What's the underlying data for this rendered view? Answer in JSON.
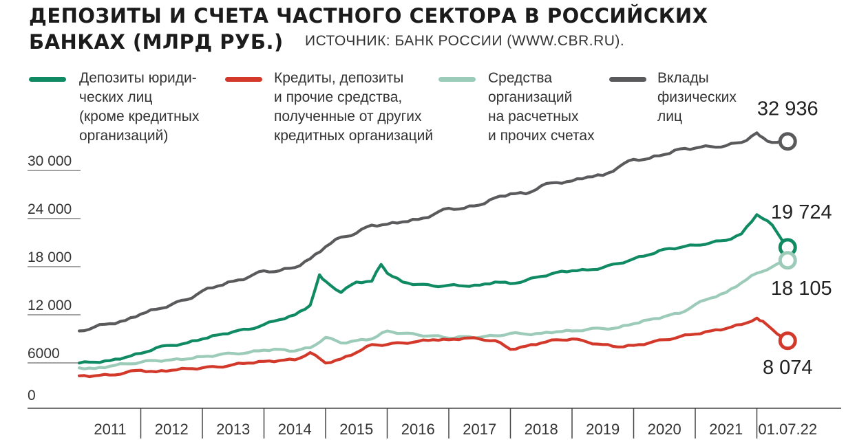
{
  "header": {
    "title_line1": "ДЕПОЗИТЫ И СЧЕТА ЧАСТНОГО СЕКТОРА В РОССИЙСКИХ",
    "title_line2": "БАНКАХ (МЛРД РУБ.)",
    "source": "ИСТОЧНИК: БАНК РОССИИ (WWW.CBR.RU)."
  },
  "legend": [
    {
      "label": "Депозиты юриди-\nческих лиц\n(кроме кредитных\nорганизаций)",
      "color": "#0f8a63"
    },
    {
      "label": "Кредиты, депозиты\nи прочие средства,\nполученные от других\nкредитных организаций",
      "color": "#d2392a"
    },
    {
      "label": "Средства\nорганизаций\nна расчетных\nи прочих счетах",
      "color": "#9ccbb9"
    },
    {
      "label": "Вклады\nфизических\nлиц",
      "color": "#5a5a5c"
    }
  ],
  "chart_data": {
    "type": "line",
    "title": "ДЕПОЗИТЫ И СЧЕТА ЧАСТНОГО СЕКТОРА В РОССИЙСКИХ БАНКАХ (МЛРД РУБ.)",
    "xlabel": "",
    "ylabel": "",
    "ylim": [
      0,
      33000
    ],
    "yticks": [
      "0",
      "6000",
      "12 000",
      "18 000",
      "24 000",
      "30 000"
    ],
    "ytick_values": [
      0,
      6000,
      12000,
      18000,
      24000,
      30000
    ],
    "xticks": [
      "2011",
      "2012",
      "2013",
      "2014",
      "2015",
      "2016",
      "2017",
      "2018",
      "2019",
      "2020",
      "2021",
      "01.07.22"
    ],
    "grid": false,
    "legend_position": "top",
    "series": [
      {
        "name": "Вклады физических лиц",
        "color": "#5a5a5c",
        "end_label": "32 936",
        "x": [
          2011.0,
          2011.25,
          2011.5,
          2011.75,
          2012.0,
          2012.25,
          2012.5,
          2012.75,
          2013.0,
          2013.25,
          2013.5,
          2013.75,
          2014.0,
          2014.25,
          2014.5,
          2014.75,
          2015.0,
          2015.25,
          2015.5,
          2015.75,
          2016.0,
          2016.25,
          2016.5,
          2016.75,
          2017.0,
          2017.25,
          2017.5,
          2017.75,
          2018.0,
          2018.25,
          2018.5,
          2018.75,
          2019.0,
          2019.25,
          2019.5,
          2019.75,
          2020.0,
          2020.25,
          2020.5,
          2020.75,
          2021.0,
          2021.25,
          2021.5,
          2021.75,
          2022.0,
          2022.1,
          2022.25,
          2022.5
        ],
        "values": [
          9300,
          9800,
          10200,
          10600,
          11400,
          12000,
          12600,
          13200,
          14300,
          14900,
          15500,
          16000,
          16800,
          16800,
          17200,
          18300,
          19800,
          21000,
          21500,
          22500,
          22600,
          22900,
          23200,
          23800,
          24600,
          24600,
          25000,
          25900,
          26400,
          26400,
          27400,
          27800,
          28000,
          28500,
          28700,
          29700,
          30700,
          30800,
          31300,
          32000,
          32100,
          32300,
          32400,
          32800,
          34000,
          33400,
          32800,
          32936
        ]
      },
      {
        "name": "Депозиты юридических лиц (кроме кредитных организаций)",
        "color": "#0f8a63",
        "end_label": "19 724",
        "x": [
          2011.0,
          2011.25,
          2011.5,
          2011.75,
          2012.0,
          2012.25,
          2012.5,
          2012.75,
          2013.0,
          2013.25,
          2013.5,
          2013.75,
          2014.0,
          2014.25,
          2014.5,
          2014.75,
          2014.9,
          2015.0,
          2015.25,
          2015.5,
          2015.75,
          2015.9,
          2016.0,
          2016.25,
          2016.5,
          2016.75,
          2017.0,
          2017.25,
          2017.5,
          2017.75,
          2018.0,
          2018.25,
          2018.5,
          2018.75,
          2019.0,
          2019.25,
          2019.5,
          2019.75,
          2020.0,
          2020.25,
          2020.5,
          2020.75,
          2021.0,
          2021.25,
          2021.5,
          2021.75,
          2022.0,
          2022.1,
          2022.25,
          2022.5
        ],
        "values": [
          5300,
          5400,
          5600,
          6000,
          6500,
          7200,
          7500,
          7800,
          8300,
          8800,
          9200,
          9500,
          10100,
          10700,
          11300,
          12500,
          16300,
          15500,
          14100,
          15400,
          15500,
          17600,
          16500,
          15400,
          15100,
          14900,
          15000,
          14900,
          15000,
          15400,
          15200,
          15600,
          16100,
          16600,
          16800,
          16900,
          17200,
          17700,
          18300,
          18800,
          19500,
          19700,
          20000,
          20300,
          20600,
          21400,
          23800,
          23300,
          22500,
          19724
        ]
      },
      {
        "name": "Средства организаций на расчетных и прочих счетах",
        "color": "#9ccbb9",
        "end_label": "18 105",
        "x": [
          2011.0,
          2011.25,
          2011.5,
          2011.75,
          2012.0,
          2012.25,
          2012.5,
          2012.75,
          2013.0,
          2013.25,
          2013.5,
          2013.75,
          2014.0,
          2014.25,
          2014.5,
          2014.75,
          2015.0,
          2015.25,
          2015.5,
          2015.75,
          2016.0,
          2016.25,
          2016.5,
          2016.75,
          2017.0,
          2017.25,
          2017.5,
          2017.75,
          2018.0,
          2018.25,
          2018.5,
          2018.75,
          2019.0,
          2019.25,
          2019.5,
          2019.75,
          2020.0,
          2020.25,
          2020.5,
          2020.75,
          2021.0,
          2021.25,
          2021.5,
          2021.75,
          2022.0,
          2022.25,
          2022.5
        ],
        "values": [
          4700,
          4600,
          4900,
          5200,
          5400,
          5600,
          5700,
          5800,
          6100,
          6300,
          6500,
          6600,
          6900,
          7000,
          6800,
          7200,
          8500,
          7800,
          8100,
          8300,
          9300,
          9000,
          8800,
          8700,
          8400,
          8600,
          8500,
          8700,
          9000,
          8900,
          9000,
          9200,
          9300,
          9500,
          9600,
          9700,
          10200,
          10700,
          11100,
          11500,
          12600,
          13400,
          14100,
          15300,
          16500,
          17300,
          18105
        ]
      },
      {
        "name": "Кредиты, депозиты и прочие средства, полученные от других кредитных организаций",
        "color": "#d2392a",
        "end_label": "8 074",
        "x": [
          2011.0,
          2011.25,
          2011.5,
          2011.75,
          2012.0,
          2012.25,
          2012.5,
          2012.75,
          2013.0,
          2013.25,
          2013.5,
          2013.75,
          2014.0,
          2014.25,
          2014.5,
          2014.75,
          2015.0,
          2015.25,
          2015.5,
          2015.75,
          2016.0,
          2016.25,
          2016.5,
          2016.75,
          2017.0,
          2017.25,
          2017.5,
          2017.75,
          2018.0,
          2018.25,
          2018.5,
          2018.75,
          2019.0,
          2019.25,
          2019.5,
          2019.75,
          2020.0,
          2020.25,
          2020.5,
          2020.75,
          2021.0,
          2021.25,
          2021.5,
          2021.75,
          2022.0,
          2022.1,
          2022.25,
          2022.5
        ],
        "values": [
          3700,
          3700,
          3800,
          4100,
          4400,
          4200,
          4400,
          4600,
          4700,
          4800,
          5100,
          5300,
          5500,
          5600,
          5700,
          6600,
          5300,
          5800,
          6600,
          7600,
          7600,
          7800,
          8000,
          8200,
          8200,
          8400,
          8300,
          8100,
          7000,
          7400,
          7800,
          8200,
          8300,
          7900,
          7600,
          7300,
          7500,
          7800,
          8200,
          8600,
          8900,
          9300,
          9600,
          10100,
          10900,
          10500,
          9500,
          8074
        ]
      }
    ]
  }
}
